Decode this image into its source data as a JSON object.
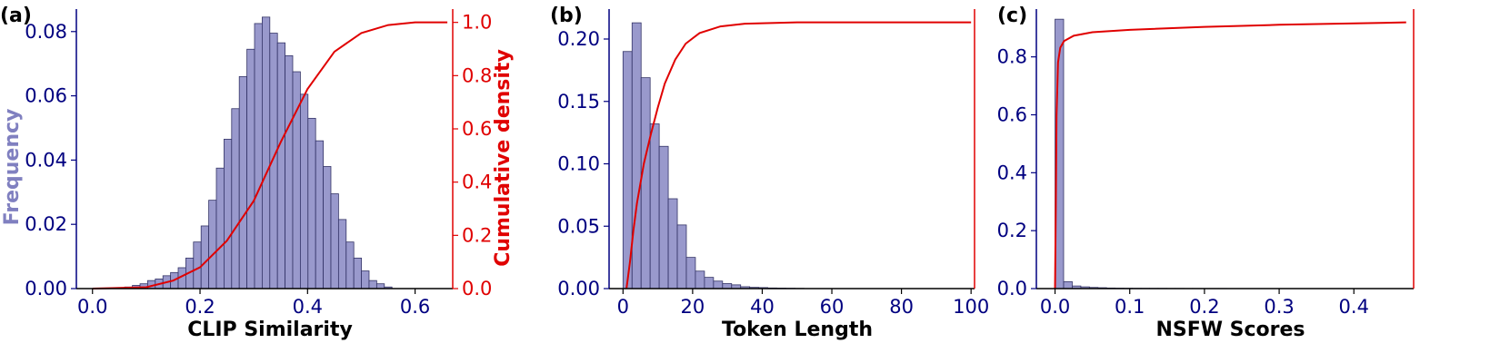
{
  "colors": {
    "bar_fill": "#9999cc",
    "bar_edge": "#333366",
    "left_axis": "#000080",
    "right_axis": "#e00000",
    "left_label": "#8080c0",
    "text": "#000000"
  },
  "chart_data": [
    {
      "type": "bar",
      "panel_label": "(a)",
      "xlabel": "CLIP Similarity",
      "ylabel": "Frequency",
      "y2label": "Cumulative density",
      "xlim": [
        -0.03,
        0.67
      ],
      "ylim": [
        0,
        0.087
      ],
      "y2lim": [
        0,
        1.05
      ],
      "xticks": [
        "0.0",
        "0.2",
        "0.4",
        "0.6"
      ],
      "yticks": [
        "0.00",
        "0.02",
        "0.04",
        "0.06",
        "0.08"
      ],
      "y2ticks": [
        "0.0",
        "0.2",
        "0.4",
        "0.6",
        "0.8",
        "1.0"
      ],
      "bin_start": 0.06,
      "bin_width": 0.0142,
      "values": [
        0.0005,
        0.001,
        0.0015,
        0.0025,
        0.003,
        0.004,
        0.005,
        0.0065,
        0.0095,
        0.0145,
        0.0195,
        0.0275,
        0.0375,
        0.0465,
        0.056,
        0.066,
        0.0745,
        0.0825,
        0.0845,
        0.0795,
        0.0765,
        0.0725,
        0.0675,
        0.0605,
        0.053,
        0.046,
        0.038,
        0.0295,
        0.0215,
        0.0145,
        0.0095,
        0.0055,
        0.0025,
        0.0015,
        0.0005
      ],
      "cdf": {
        "x": [
          0.0,
          0.1,
          0.15,
          0.2,
          0.25,
          0.3,
          0.35,
          0.4,
          0.45,
          0.5,
          0.55,
          0.6,
          0.66
        ],
        "y": [
          0.0,
          0.005,
          0.03,
          0.08,
          0.18,
          0.33,
          0.55,
          0.75,
          0.89,
          0.96,
          0.99,
          1.0,
          1.0
        ]
      }
    },
    {
      "type": "bar",
      "panel_label": "(b)",
      "xlabel": "Token Length",
      "ylabel": "",
      "xlim": [
        -4,
        101
      ],
      "ylim": [
        0,
        0.224
      ],
      "y2lim": [
        0,
        1.05
      ],
      "xticks": [
        "0",
        "20",
        "40",
        "60",
        "80",
        "100"
      ],
      "yticks": [
        "0.00",
        "0.05",
        "0.10",
        "0.15",
        "0.20"
      ],
      "bin_start": 0,
      "bin_width": 2.6,
      "values": [
        0.19,
        0.213,
        0.169,
        0.132,
        0.114,
        0.072,
        0.051,
        0.025,
        0.014,
        0.009,
        0.006,
        0.004,
        0.003,
        0.0015,
        0.001,
        0.0008,
        0.0005,
        0.0004,
        0.0003,
        0.0002
      ],
      "cdf": {
        "x": [
          1,
          2,
          3,
          4,
          6,
          8,
          10,
          12,
          15,
          18,
          22,
          28,
          35,
          50,
          100
        ],
        "y": [
          0.0,
          0.1,
          0.22,
          0.32,
          0.47,
          0.58,
          0.68,
          0.77,
          0.86,
          0.92,
          0.96,
          0.985,
          0.995,
          1.0,
          1.0
        ]
      }
    },
    {
      "type": "bar",
      "panel_label": "(c)",
      "xlabel": "NSFW Scores",
      "ylabel": "",
      "xlim": [
        -0.025,
        0.48
      ],
      "ylim": [
        0,
        0.965
      ],
      "y2lim": [
        0,
        1.05
      ],
      "xticks": [
        "0.0",
        "0.1",
        "0.2",
        "0.3",
        "0.4"
      ],
      "yticks": [
        "0.0",
        "0.2",
        "0.4",
        "0.6",
        "0.8"
      ],
      "bin_start": 0,
      "bin_width": 0.0115,
      "values": [
        0.93,
        0.024,
        0.009,
        0.006,
        0.004,
        0.003,
        0.002,
        0.0015,
        0.0012,
        0.001,
        0.001,
        0.0008,
        0.0008,
        0.0006,
        0.0006,
        0.0005,
        0.0005,
        0.0004,
        0.0004,
        0.0004,
        0.0003,
        0.0003,
        0.0003,
        0.0003,
        0.0003,
        0.0002,
        0.0002,
        0.0002,
        0.0002,
        0.0002,
        0.0002,
        0.0002,
        0.0002,
        0.0002,
        0.0002,
        0.0002,
        0.0002,
        0.0002,
        0.0002,
        0.0002
      ],
      "cdf": {
        "x": [
          0.0,
          0.001,
          0.002,
          0.004,
          0.007,
          0.012,
          0.025,
          0.05,
          0.1,
          0.2,
          0.3,
          0.47
        ],
        "y": [
          0.0,
          0.3,
          0.65,
          0.85,
          0.905,
          0.93,
          0.95,
          0.963,
          0.972,
          0.983,
          0.991,
          1.0
        ]
      }
    }
  ]
}
